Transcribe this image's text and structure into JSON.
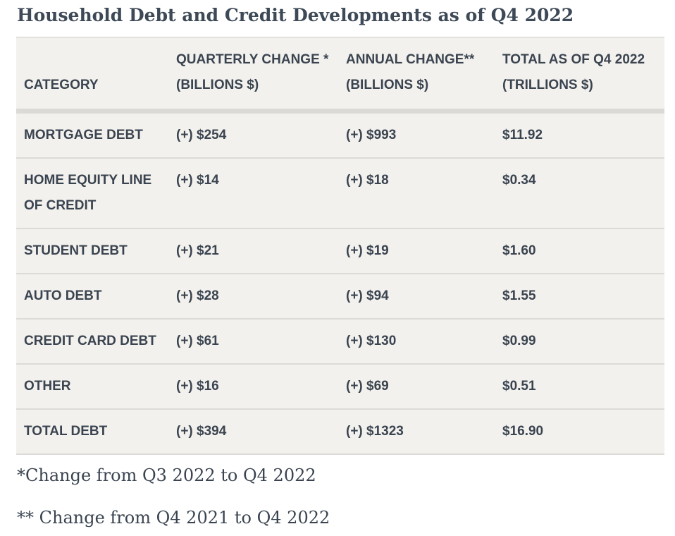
{
  "title": "Household Debt and Credit Developments as of Q4 2022",
  "table": {
    "headers": [
      "CATEGORY",
      "QUARTERLY CHANGE * (BILLIONS $)",
      "ANNUAL CHANGE** (BILLIONS $)",
      "TOTAL AS OF Q4 2022 (TRILLIONS $)"
    ],
    "rows": [
      [
        "MORTGAGE DEBT",
        "(+) $254",
        "(+) $993",
        "$11.92"
      ],
      [
        "HOME EQUITY LINE OF CREDIT",
        "(+) $14",
        "(+) $18",
        "$0.34"
      ],
      [
        "STUDENT DEBT",
        "(+) $21",
        "(+) $19",
        "$1.60"
      ],
      [
        "AUTO DEBT",
        "(+) $28",
        "(+) $94",
        "$1.55"
      ],
      [
        "CREDIT CARD DEBT",
        "(+) $61",
        "(+) $130",
        "$0.99"
      ],
      [
        "OTHER",
        "(+) $16",
        "(+) $69",
        "$0.51"
      ],
      [
        "TOTAL DEBT",
        "(+) $394",
        "(+) $1323",
        "$16.90"
      ]
    ]
  },
  "footnotes": [
    "*Change from Q3 2022 to Q4 2022",
    "** Change from Q4 2021 to Q4 2022"
  ]
}
